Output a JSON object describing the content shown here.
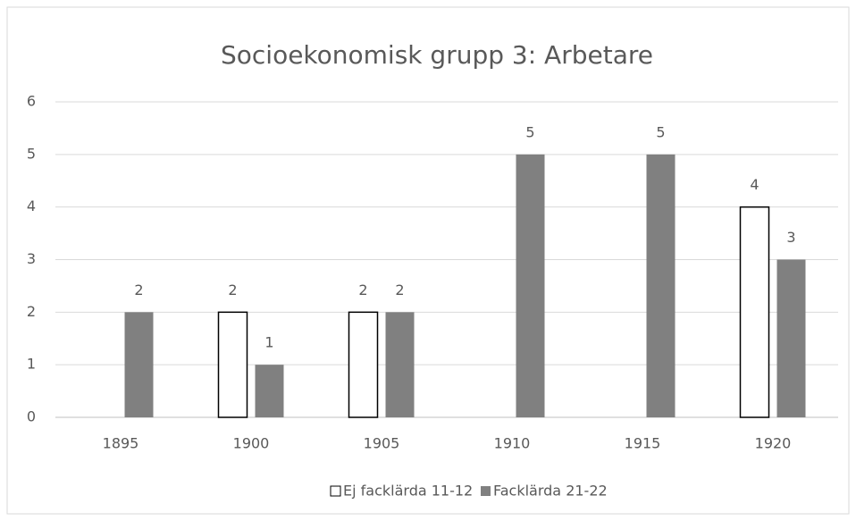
{
  "chart_data": {
    "type": "bar",
    "title": "Socioekonomisk grupp 3: Arbetare",
    "categories": [
      "1895",
      "1900",
      "1905",
      "1910",
      "1915",
      "1920"
    ],
    "series": [
      {
        "name": "Ej facklärda 11-12",
        "color": "#ffffff",
        "values": [
          null,
          2,
          2,
          null,
          null,
          4
        ]
      },
      {
        "name": "Facklärda 21-22",
        "color": "#808080",
        "values": [
          2,
          1,
          2,
          5,
          5,
          3
        ]
      }
    ],
    "ylim": [
      0,
      6
    ],
    "yticks": [
      0,
      1,
      2,
      3,
      4,
      5,
      6
    ],
    "grid": true,
    "legend": "bottom"
  }
}
